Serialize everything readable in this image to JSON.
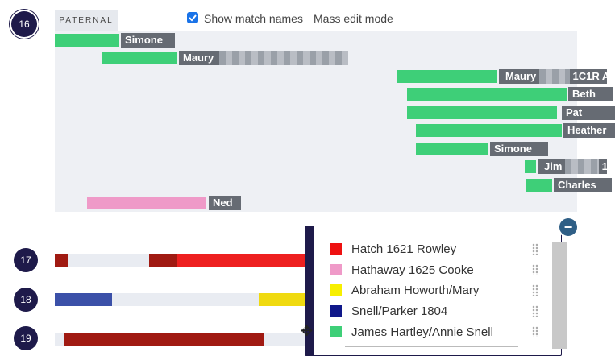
{
  "chromosomes": {
    "c16": "16",
    "c17": "17",
    "c18": "18",
    "c19": "19"
  },
  "header": {
    "section": "PATERNAL",
    "show_names_label": "Show match names",
    "show_names_checked": true,
    "mass_edit_label": "Mass edit mode"
  },
  "matches": [
    {
      "name": "Simone",
      "color": "#3ecf78"
    },
    {
      "name": "Maury",
      "color": "#3ecf78"
    },
    {
      "name": "Maury",
      "suffix": "1C1R A",
      "color": "#3ecf78"
    },
    {
      "name": "Beth",
      "color": "#3ecf78"
    },
    {
      "name": "Pat",
      "color": "#3ecf78"
    },
    {
      "name": "Heather",
      "color": "#3ecf78"
    },
    {
      "name": "Simone",
      "color": "#3ecf78"
    },
    {
      "name": "Jim",
      "suffix": "1",
      "color": "#3ecf78"
    },
    {
      "name": "Charles",
      "color": "#3ecf78"
    },
    {
      "name": "Ned",
      "color": "#ef9ac8"
    }
  ],
  "legend": {
    "items": [
      {
        "label": "Hatch 1621 Rowley",
        "color": "#ee1111"
      },
      {
        "label": "Hathaway 1625 Cooke",
        "color": "#ef9ac8"
      },
      {
        "label": "Abraham Howorth/Mary",
        "color": "#f7ef00"
      },
      {
        "label": "Snell/Parker 1804",
        "color": "#10188a"
      },
      {
        "label": "James Hartley/Annie Snell",
        "color": "#3ecf78"
      }
    ],
    "collapse_icon": "minus-icon"
  }
}
